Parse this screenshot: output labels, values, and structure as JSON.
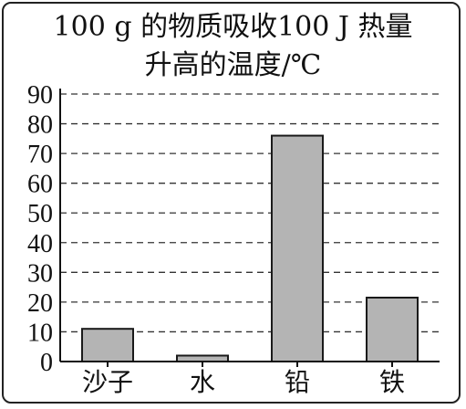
{
  "title_line1": "100 g 的物质吸收100 J 热量",
  "title_line2": "升高的温度/℃",
  "colors": {
    "bar_fill": "#b4b4b4",
    "bar_stroke": "#1a1a1a",
    "grid": "#333333",
    "axis": "#111111"
  },
  "chart_data": {
    "type": "bar",
    "title": "100 g 的物质吸收100 J 热量 升高的温度/℃",
    "categories": [
      "沙子",
      "水",
      "铅",
      "铁"
    ],
    "values": [
      11,
      2,
      76,
      21.5
    ],
    "yticks": [
      "0",
      "10",
      "20",
      "30",
      "40",
      "50",
      "60",
      "70",
      "80",
      "90"
    ],
    "ylim": [
      0,
      90
    ],
    "grid": true,
    "grid_style": "dashed"
  }
}
